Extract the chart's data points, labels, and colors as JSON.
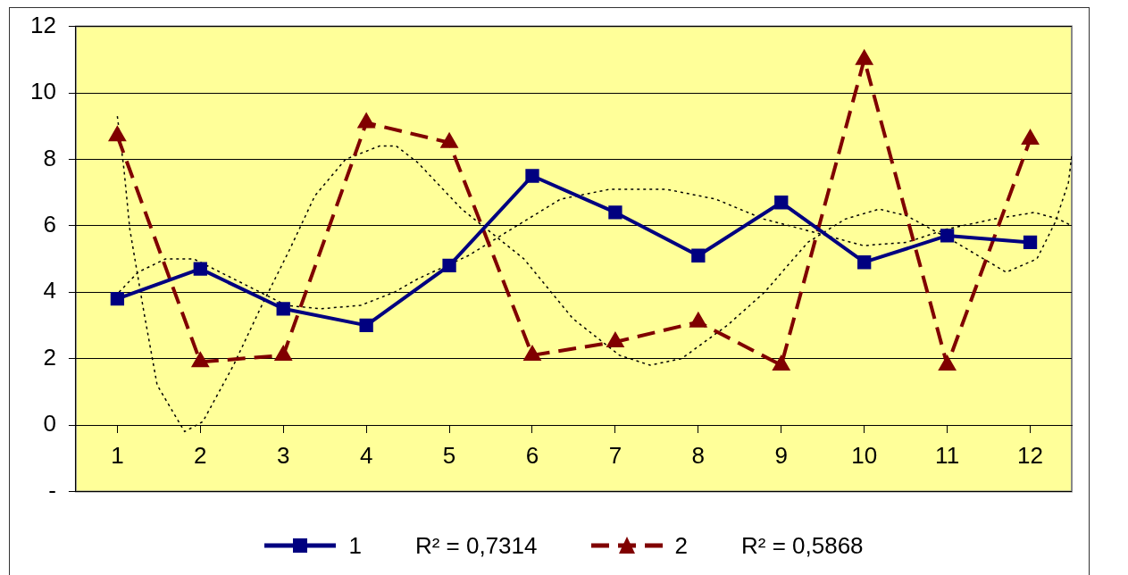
{
  "chart_data": {
    "type": "line",
    "x": [
      1,
      2,
      3,
      4,
      5,
      6,
      7,
      8,
      9,
      10,
      11,
      12
    ],
    "xlim": [
      0.5,
      12.5
    ],
    "xticks": [
      1,
      2,
      3,
      4,
      5,
      6,
      7,
      8,
      9,
      10,
      11,
      12
    ],
    "ylim": [
      -2,
      12
    ],
    "yticks": [
      {
        "value": -2,
        "label": "-"
      },
      0,
      2,
      4,
      6,
      8,
      10,
      12
    ],
    "grid": "y",
    "legend": "bottom",
    "series": [
      {
        "name": "1",
        "color": "#000080",
        "marker": "square",
        "line_style": "solid",
        "values": [
          3.8,
          4.7,
          3.5,
          3.0,
          4.8,
          7.5,
          6.4,
          5.1,
          6.7,
          4.9,
          5.7,
          5.5
        ]
      },
      {
        "name": "2",
        "color": "#800000",
        "marker": "triangle",
        "line_style": "dashed",
        "values": [
          8.7,
          1.9,
          2.1,
          9.1,
          8.5,
          2.1,
          2.5,
          3.1,
          1.8,
          11.0,
          1.8,
          8.6
        ]
      },
      {
        "type": "line",
        "color": "#000000",
        "marker": "none",
        "line_style": "dotted",
        "x": [
          1.02,
          1.25,
          1.58,
          1.92,
          2.48,
          3.04,
          3.45,
          3.93,
          4.34,
          4.62,
          5.23,
          5.75,
          6.34,
          6.94,
          7.61,
          8.21,
          8.79,
          9.4,
          9.99,
          10.51,
          11.0,
          11.56,
          12.05,
          12.34,
          12.5
        ],
        "values": [
          4.0,
          4.6,
          5.0,
          5.0,
          4.3,
          3.6,
          3.5,
          3.6,
          4.0,
          4.4,
          5.1,
          5.9,
          6.8,
          7.1,
          7.1,
          6.8,
          6.2,
          5.8,
          5.4,
          5.5,
          5.9,
          6.2,
          6.4,
          6.2,
          6.0
        ]
      },
      {
        "type": "line",
        "color": "#000000",
        "marker": "none",
        "line_style": "dotted",
        "x": [
          1.0,
          1.08,
          1.15,
          1.32,
          1.48,
          1.81,
          2.03,
          2.4,
          2.74,
          3.08,
          3.38,
          3.75,
          4.16,
          4.36,
          4.62,
          5.15,
          5.9,
          6.49,
          7.05,
          7.42,
          7.8,
          8.35,
          8.8,
          9.32,
          9.77,
          10.18,
          10.51,
          11.1,
          11.71,
          12.08,
          12.3,
          12.46,
          12.5
        ],
        "values": [
          9.3,
          7.7,
          5.9,
          3.4,
          1.2,
          -0.2,
          0.1,
          1.8,
          3.6,
          5.3,
          6.9,
          8.0,
          8.4,
          8.4,
          7.9,
          6.5,
          5.0,
          3.2,
          2.1,
          1.8,
          2.0,
          3.0,
          4.0,
          5.5,
          6.2,
          6.5,
          6.3,
          5.5,
          4.6,
          5.0,
          6.1,
          7.3,
          8.1
        ]
      }
    ],
    "annotations": [
      "R² = 0,7314",
      "R² = 0,5868"
    ]
  }
}
